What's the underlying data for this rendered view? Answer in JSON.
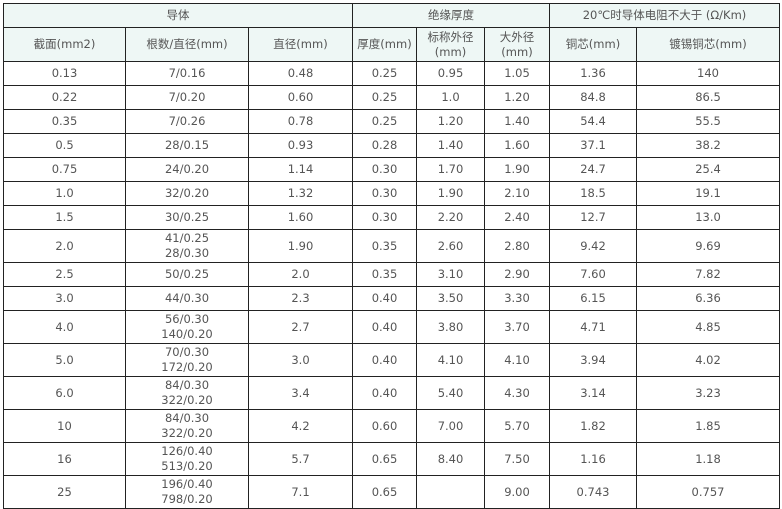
{
  "header": {
    "groups": [
      "导体",
      "绝缘厚度",
      "20℃时导体电阻不大于 (Ω/Km)"
    ],
    "columns": [
      "截面(mm2)",
      "根数/直径(mm)",
      "直径(mm)",
      "厚度(mm)",
      "标称外径(mm)",
      "大外径(mm)",
      "铜芯(mm)",
      "镀锡铜芯(mm)"
    ]
  },
  "rows": [
    [
      "0.13",
      "7/0.16",
      "0.48",
      "0.25",
      "0.95",
      "1.05",
      "1.36",
      "140"
    ],
    [
      "0.22",
      "7/0.20",
      "0.60",
      "0.25",
      "1.0",
      "1.20",
      "84.8",
      "86.5"
    ],
    [
      "0.35",
      "7/0.26",
      "0.78",
      "0.25",
      "1.20",
      "1.40",
      "54.4",
      "55.5"
    ],
    [
      "0.5",
      "28/0.15",
      "0.93",
      "0.28",
      "1.40",
      "1.60",
      "37.1",
      "38.2"
    ],
    [
      "0.75",
      "24/0.20",
      "1.14",
      "0.30",
      "1.70",
      "1.90",
      "24.7",
      "25.4"
    ],
    [
      "1.0",
      "32/0.20",
      "1.32",
      "0.30",
      "1.90",
      "2.10",
      "18.5",
      "19.1"
    ],
    [
      "1.5",
      "30/0.25",
      "1.60",
      "0.30",
      "2.20",
      "2.40",
      "12.7",
      "13.0"
    ],
    [
      "2.0",
      "41/0.25\n28/0.30",
      "1.90",
      "0.35",
      "2.60",
      "2.80",
      "9.42",
      "9.69"
    ],
    [
      "2.5",
      "50/0.25",
      "2.0",
      "0.35",
      "3.10",
      "2.90",
      "7.60",
      "7.82"
    ],
    [
      "3.0",
      "44/0.30",
      "2.3",
      "0.40",
      "3.50",
      "3.30",
      "6.15",
      "6.36"
    ],
    [
      "4.0",
      "56/0.30\n140/0.20",
      "2.7",
      "0.40",
      "3.80",
      "3.70",
      "4.71",
      "4.85"
    ],
    [
      "5.0",
      "70/0.30\n172/0.20",
      "3.0",
      "0.40",
      "4.10",
      "4.10",
      "3.94",
      "4.02"
    ],
    [
      "6.0",
      "84/0.30\n322/0.20",
      "3.4",
      "0.40",
      "5.40",
      "4.30",
      "3.14",
      "3.23"
    ],
    [
      "10",
      "84/0.30\n322/0.20",
      "4.2",
      "0.60",
      "7.00",
      "5.70",
      "1.82",
      "1.85"
    ],
    [
      "16",
      "126/0.40\n513/0.20",
      "5.7",
      "0.65",
      "8.40",
      "7.50",
      "1.16",
      "1.18"
    ],
    [
      "25",
      "196/0.40\n798/0.20",
      "7.1",
      "0.65",
      "",
      "9.00",
      "0.743",
      "0.757"
    ]
  ]
}
